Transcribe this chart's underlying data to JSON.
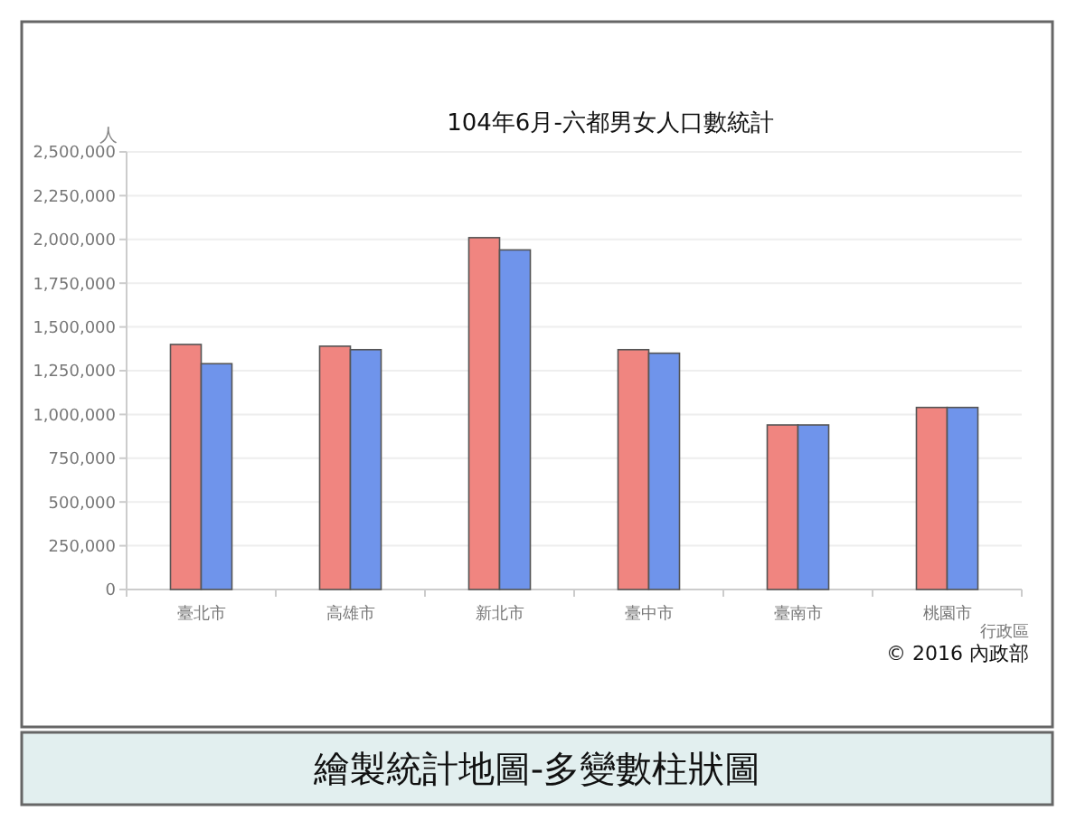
{
  "chart_data": {
    "type": "bar",
    "title": "104年6月-六都男女人口數統計",
    "xlabel": "行政區",
    "ylabel": "人",
    "categories": [
      "臺北市",
      "高雄市",
      "新北市",
      "臺中市",
      "臺南市",
      "桃園市"
    ],
    "series": [
      {
        "color": "#f08580",
        "values": [
          1400000,
          1390000,
          2010000,
          1370000,
          940000,
          1040000
        ]
      },
      {
        "color": "#6f94eb",
        "values": [
          1290000,
          1370000,
          1940000,
          1350000,
          940000,
          1040000
        ]
      }
    ],
    "ylim": [
      0,
      2500000
    ],
    "yticks": [
      {
        "value": 0,
        "label": "0"
      },
      {
        "value": 250000,
        "label": "250,000"
      },
      {
        "value": 500000,
        "label": "500,000"
      },
      {
        "value": 750000,
        "label": "750,000"
      },
      {
        "value": 1000000,
        "label": "1,000,000"
      },
      {
        "value": 1250000,
        "label": "1,250,000"
      },
      {
        "value": 1500000,
        "label": "1,500,000"
      },
      {
        "value": 1750000,
        "label": "1,750,000"
      },
      {
        "value": 2000000,
        "label": "2,000,000"
      },
      {
        "value": 2250000,
        "label": "2,250,000"
      },
      {
        "value": 2500000,
        "label": "2,500,000"
      }
    ],
    "grid": "y",
    "annotations": [
      "© 2016 內政部",
      "繪製統計地圖-多變數柱狀圖"
    ]
  }
}
